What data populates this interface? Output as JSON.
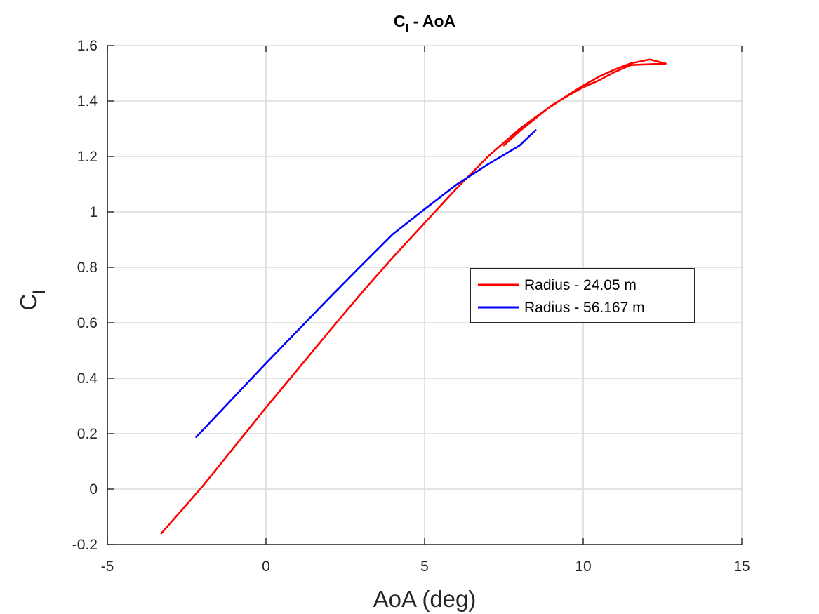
{
  "chart_data": {
    "type": "line",
    "title_main": "C",
    "title_sub": "l",
    "title_rest": " - AoA",
    "xlabel": "AoA (deg)",
    "ylabel_main": "C",
    "ylabel_sub": "l",
    "xlim": [
      -5,
      15
    ],
    "ylim": [
      -0.2,
      1.6
    ],
    "xticks": [
      -5,
      0,
      5,
      10,
      15
    ],
    "xtick_labels": [
      "-5",
      "0",
      "5",
      "10",
      "15"
    ],
    "yticks": [
      -0.2,
      0,
      0.2,
      0.4,
      0.6,
      0.8,
      1,
      1.2,
      1.4,
      1.6
    ],
    "ytick_labels": [
      "-0.2",
      "0",
      "0.2",
      "0.4",
      "0.6",
      "0.8",
      "1",
      "1.2",
      "1.4",
      "1.6"
    ],
    "grid": true,
    "legend_position": "center-right",
    "series": [
      {
        "name": "Radius - 24.05 m",
        "color": "#ff0000",
        "x": [
          -3.3,
          -2.0,
          -1.0,
          0.0,
          1.0,
          2.0,
          3.0,
          4.0,
          5.0,
          6.0,
          7.0,
          7.6,
          8.0,
          8.5,
          9.0,
          9.5,
          10.0,
          10.5,
          11.0,
          11.5,
          12.1,
          12.6,
          11.5,
          11.0,
          10.5,
          10.0,
          9.5,
          9.0,
          8.5,
          8.0,
          7.5
        ],
        "y": [
          -0.16,
          0.01,
          0.152,
          0.294,
          0.432,
          0.57,
          0.706,
          0.836,
          0.96,
          1.084,
          1.2,
          1.26,
          1.3,
          1.342,
          1.382,
          1.42,
          1.456,
          1.488,
          1.514,
          1.536,
          1.55,
          1.535,
          1.53,
          1.505,
          1.475,
          1.45,
          1.418,
          1.384,
          1.338,
          1.292,
          1.24
        ]
      },
      {
        "name": "Radius - 56.167 m",
        "color": "#0000ff",
        "x": [
          -2.2,
          -1.0,
          0.0,
          1.0,
          2.0,
          3.0,
          4.0,
          5.0,
          6.0,
          7.0,
          8.0,
          8.5
        ],
        "y": [
          0.188,
          0.333,
          0.454,
          0.572,
          0.69,
          0.806,
          0.92,
          1.01,
          1.098,
          1.172,
          1.24,
          1.295
        ]
      }
    ]
  }
}
